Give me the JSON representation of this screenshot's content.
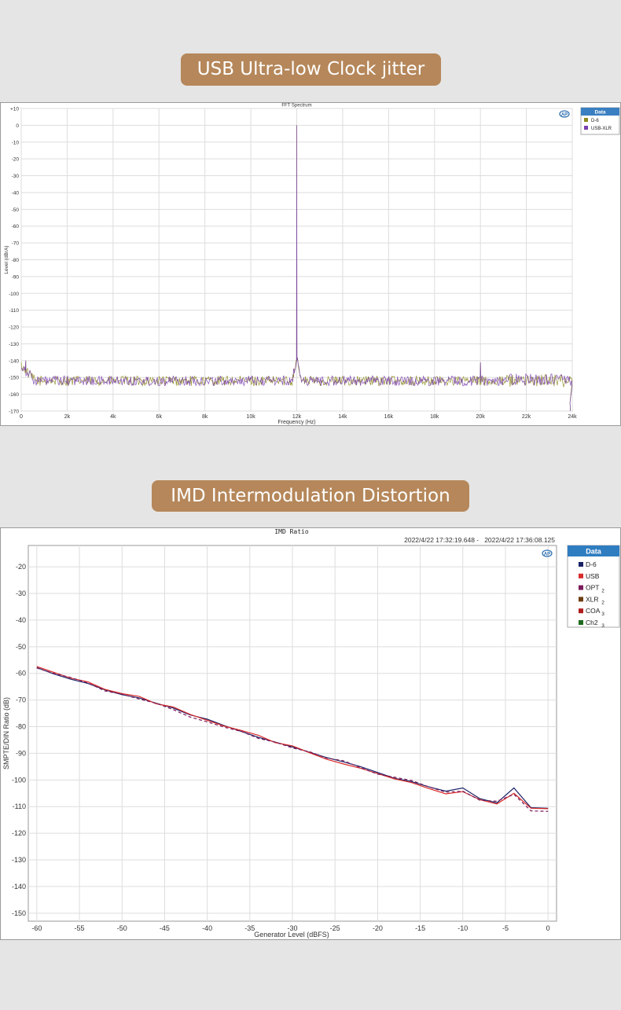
{
  "banners": {
    "top": "USB Ultra-low Clock jitter",
    "bottom": "IMD Intermodulation Distortion"
  },
  "chart_data": [
    {
      "type": "line",
      "title": "FFT Spectrum",
      "xlabel": "Frequency (Hz)",
      "ylabel": "Level (dBrA)",
      "xlim": [
        0,
        24000
      ],
      "ylim": [
        -170,
        10
      ],
      "x_ticks": [
        0,
        2000,
        4000,
        6000,
        8000,
        10000,
        12000,
        14000,
        16000,
        18000,
        20000,
        22000,
        24000
      ],
      "x_tick_labels": [
        "0",
        "2k",
        "4k",
        "6k",
        "8k",
        "10k",
        "12k",
        "14k",
        "16k",
        "18k",
        "20k",
        "22k",
        "24k"
      ],
      "y_ticks": [
        10,
        0,
        -10,
        -20,
        -30,
        -40,
        -50,
        -60,
        -70,
        -80,
        -90,
        -100,
        -110,
        -120,
        -130,
        -140,
        -150,
        -160,
        -170
      ],
      "y_tick_labels": [
        "+10",
        "0",
        "-10",
        "-20",
        "-30",
        "-40",
        "-50",
        "-60",
        "-70",
        "-80",
        "-90",
        "-100",
        "-110",
        "-120",
        "-130",
        "-140",
        "-150",
        "-160",
        "-170"
      ],
      "grid": true,
      "legend_title": "Data",
      "legend_position": "right",
      "series": [
        {
          "name": "D-6",
          "color": "#8c8a1c",
          "noise_floor": -152,
          "peak_x": 12000,
          "peak_y": 0
        },
        {
          "name": "USB-XLR",
          "color": "#7a3fb0",
          "noise_floor": -152,
          "peak_x": 12000,
          "peak_y": 0
        }
      ],
      "annotations": [
        {
          "x": 200,
          "y": -140
        },
        {
          "x": 20000,
          "y": -141
        }
      ]
    },
    {
      "type": "line",
      "title": "IMD Ratio",
      "subtitle": "2022/4/22 17:32:19.648 -   2022/4/22 17:36:08.125",
      "xlabel": "Generator Level (dBFS)",
      "ylabel": "SMPTE/DIN Ratio (dB)",
      "xlim": [
        -61,
        1
      ],
      "ylim": [
        -153,
        -12
      ],
      "x_ticks": [
        -60,
        -55,
        -50,
        -45,
        -40,
        -35,
        -30,
        -25,
        -20,
        -15,
        -10,
        -5,
        0
      ],
      "x_tick_labels": [
        "-60",
        "-55",
        "-50",
        "-45",
        "-40",
        "-35",
        "-30",
        "-25",
        "-20",
        "-15",
        "-10",
        "-5",
        "0"
      ],
      "y_ticks": [
        -20,
        -30,
        -40,
        -50,
        -60,
        -70,
        -80,
        -90,
        -100,
        -110,
        -120,
        -130,
        -140,
        -150
      ],
      "y_tick_labels": [
        "-20",
        "-30",
        "-40",
        "-50",
        "-60",
        "-70",
        "-80",
        "-90",
        "-100",
        "-110",
        "-120",
        "-130",
        "-140",
        "-150"
      ],
      "grid": true,
      "legend_title": "Data",
      "legend_position": "right",
      "legend_entries": [
        {
          "name": "D-6",
          "sub": "",
          "color": "#1a2266"
        },
        {
          "name": "USB",
          "sub": "",
          "color": "#d92b2b"
        },
        {
          "name": "OPT",
          "sub": "2",
          "color": "#7a1a5a"
        },
        {
          "name": "XLR",
          "sub": "2",
          "color": "#6e3d12"
        },
        {
          "name": "COA",
          "sub": "3",
          "color": "#b01c1c"
        },
        {
          "name": "Ch2",
          "sub": "3",
          "color": "#1e6a1e"
        }
      ],
      "x": [
        -60,
        -58,
        -56,
        -54,
        -52,
        -50,
        -48,
        -46,
        -44,
        -42,
        -40,
        -38,
        -36,
        -34,
        -32,
        -30,
        -28,
        -26,
        -24,
        -22,
        -20,
        -18,
        -16,
        -14,
        -12,
        -10,
        -8,
        -6,
        -4,
        -2,
        0
      ],
      "series": [
        {
          "name": "D-6",
          "color": "#1a2266",
          "dash": "",
          "values": [
            -57.8,
            -60.2,
            -62.2,
            -63.8,
            -66.2,
            -68.0,
            -69.2,
            -71.2,
            -73.0,
            -75.6,
            -77.2,
            -79.6,
            -81.8,
            -84.0,
            -85.8,
            -87.6,
            -89.6,
            -91.6,
            -93.2,
            -95.0,
            -97.2,
            -99.4,
            -100.6,
            -102.6,
            -104.2,
            -103.0,
            -107.0,
            -108.6,
            -103.0,
            -110.4,
            -110.6
          ]
        },
        {
          "name": "USB",
          "color": "#d92b2b",
          "dash": "",
          "values": [
            -57.4,
            -59.6,
            -61.8,
            -63.2,
            -66.0,
            -67.6,
            -68.6,
            -71.4,
            -72.6,
            -75.4,
            -77.6,
            -79.8,
            -81.4,
            -83.2,
            -86.0,
            -87.2,
            -89.8,
            -92.2,
            -94.0,
            -95.6,
            -97.6,
            -99.6,
            -101.0,
            -103.2,
            -105.2,
            -104.4,
            -107.4,
            -109.0,
            -105.0,
            -110.6,
            -110.8
          ]
        },
        {
          "name": "OPT",
          "color": "#7a1a5a",
          "dash": "4,3",
          "values": [
            -58.0,
            -60.0,
            -61.6,
            -63.6,
            -66.6,
            -67.8,
            -69.6,
            -71.2,
            -73.6,
            -76.4,
            -78.2,
            -80.2,
            -81.8,
            -84.4,
            -85.8,
            -88.0,
            -89.4,
            -91.8,
            -92.8,
            -95.4,
            -97.8,
            -99.0,
            -100.2,
            -102.6,
            -104.6,
            -104.2,
            -107.6,
            -108.0,
            -105.4,
            -111.6,
            -111.8
          ]
        }
      ]
    }
  ]
}
